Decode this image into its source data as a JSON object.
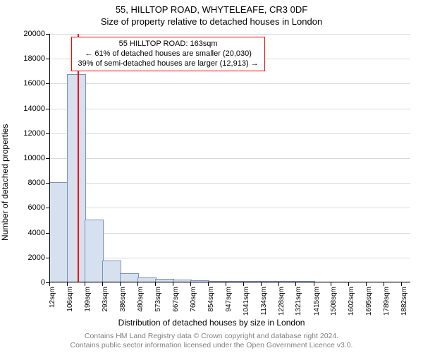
{
  "title": {
    "line1": "55, HILLTOP ROAD, WHYTELEAFE, CR3 0DF",
    "line2": "Size of property relative to detached houses in London"
  },
  "chart": {
    "type": "histogram",
    "ylabel": "Number of detached properties",
    "xlabel": "Distribution of detached houses by size in London",
    "ylim": [
      0,
      20000
    ],
    "ytick_step": 2000,
    "xtick_labels": [
      "12sqm",
      "106sqm",
      "199sqm",
      "293sqm",
      "386sqm",
      "480sqm",
      "573sqm",
      "667sqm",
      "760sqm",
      "854sqm",
      "947sqm",
      "1041sqm",
      "1134sqm",
      "1228sqm",
      "1321sqm",
      "1415sqm",
      "1508sqm",
      "1602sqm",
      "1695sqm",
      "1789sqm",
      "1882sqm"
    ],
    "xtick_values": [
      12,
      106,
      199,
      293,
      386,
      480,
      573,
      667,
      760,
      854,
      947,
      1041,
      1134,
      1228,
      1321,
      1415,
      1508,
      1602,
      1695,
      1789,
      1882
    ],
    "x_range": [
      12,
      1930
    ],
    "bars": [
      {
        "x0": 12,
        "x1": 106,
        "y": 8000
      },
      {
        "x0": 106,
        "x1": 199,
        "y": 16700
      },
      {
        "x0": 199,
        "x1": 293,
        "y": 5000
      },
      {
        "x0": 293,
        "x1": 386,
        "y": 1700
      },
      {
        "x0": 386,
        "x1": 480,
        "y": 700
      },
      {
        "x0": 480,
        "x1": 573,
        "y": 350
      },
      {
        "x0": 573,
        "x1": 667,
        "y": 200
      },
      {
        "x0": 667,
        "x1": 760,
        "y": 180
      },
      {
        "x0": 760,
        "x1": 854,
        "y": 120
      },
      {
        "x0": 854,
        "x1": 947,
        "y": 60
      },
      {
        "x0": 947,
        "x1": 1041,
        "y": 60
      },
      {
        "x0": 1041,
        "x1": 1134,
        "y": 40
      },
      {
        "x0": 1134,
        "x1": 1228,
        "y": 40
      },
      {
        "x0": 1228,
        "x1": 1321,
        "y": 30
      },
      {
        "x0": 1321,
        "x1": 1415,
        "y": 30
      },
      {
        "x0": 1415,
        "x1": 1508,
        "y": 25
      },
      {
        "x0": 1508,
        "x1": 1602,
        "y": 25
      },
      {
        "x0": 1602,
        "x1": 1695,
        "y": 20
      },
      {
        "x0": 1695,
        "x1": 1789,
        "y": 20
      },
      {
        "x0": 1789,
        "x1": 1882,
        "y": 20
      }
    ],
    "bar_fill": "#d6e0ef",
    "bar_stroke": "#7a93bd",
    "grid_color": "#d9d9d9",
    "background_color": "#ffffff",
    "marker": {
      "x": 163,
      "color": "#ff0000"
    },
    "callout": {
      "border_color": "#ff0000",
      "lines": [
        "55 HILLTOP ROAD: 163sqm",
        "← 61% of detached houses are smaller (20,030)",
        "39% of semi-detached houses are larger (12,913) →"
      ]
    },
    "axis_fontsize": 11,
    "label_fontsize": 12,
    "tick_fontsize": 10
  },
  "attribution": {
    "line1": "Contains HM Land Registry data © Crown copyright and database right 2024.",
    "line2": "Contains public sector information licensed under the Open Government Licence v3.0."
  }
}
